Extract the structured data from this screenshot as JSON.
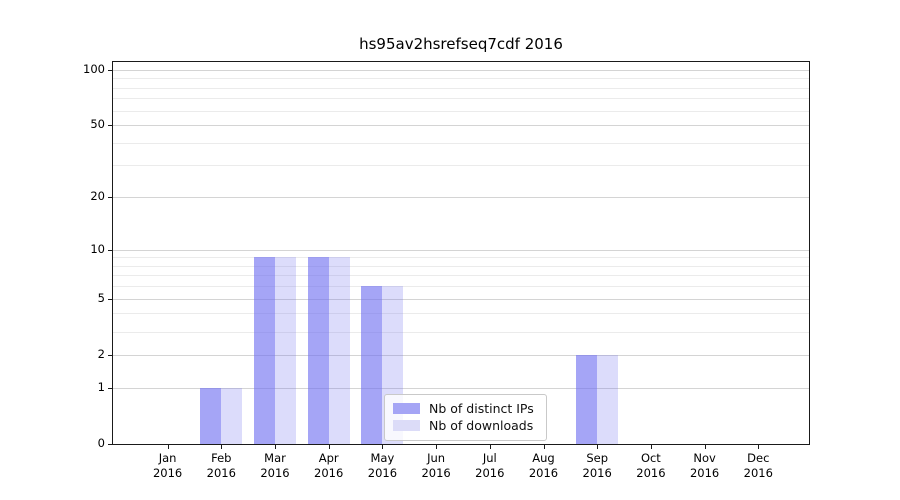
{
  "chart_data": {
    "type": "bar",
    "title": "hs95av2hsrefseq7cdf 2016",
    "year_label": "2016",
    "categories": [
      "Jan",
      "Feb",
      "Mar",
      "Apr",
      "May",
      "Jun",
      "Jul",
      "Aug",
      "Sep",
      "Oct",
      "Nov",
      "Dec"
    ],
    "series": [
      {
        "name": "Nb of distinct IPs",
        "values": [
          0,
          1,
          9,
          9,
          6,
          0,
          0,
          0,
          2,
          0,
          0,
          0
        ],
        "color": "rgba(110,110,240,0.62)",
        "swatch_color": "#a5a5f5"
      },
      {
        "name": "Nb of downloads",
        "values": [
          0,
          1,
          9,
          9,
          6,
          0,
          0,
          0,
          2,
          0,
          0,
          0
        ],
        "color": "rgba(110,110,240,0.24)",
        "swatch_color": "#dcdcf8"
      }
    ],
    "xlabel": "",
    "ylabel": "",
    "yscale": "log1p",
    "ylim": [
      0,
      110
    ],
    "yticks": [
      0,
      1,
      2,
      5,
      10,
      20,
      50,
      100
    ],
    "yticks_minor": [
      3,
      4,
      6,
      7,
      8,
      9,
      30,
      40,
      60,
      70,
      80,
      90
    ],
    "grid": {
      "major_color": "#d4d4d4",
      "minor_color": "#ebebeb",
      "visible": true
    },
    "legend": {
      "location": "inside-lower-center"
    },
    "axis_color": "#1a1a1a"
  }
}
